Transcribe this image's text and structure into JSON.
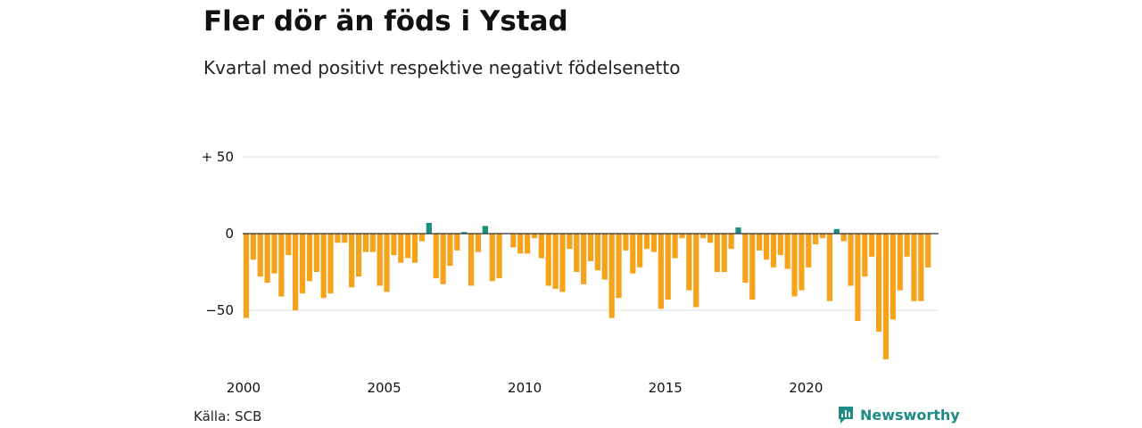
{
  "header": {
    "title": "Fler dör än föds i Ystad",
    "subtitle": "Kvartal med positivt respektive negativt födelsenetto"
  },
  "footer": {
    "source": "Källa: SCB",
    "brand": "Newsworthy",
    "brand_icon": "newsworthy-logo-icon"
  },
  "colors": {
    "positive": "#1a8f80",
    "negative": "#f5a31a",
    "grid": "#dddddd",
    "zero_line": "#333333",
    "text": "#111111",
    "brand": "#1e8c84"
  },
  "chart_data": {
    "type": "bar",
    "x_start": 2000.0,
    "x_step": 0.25,
    "xlim": [
      2000,
      2024.75
    ],
    "x_ticks": [
      2000,
      2005,
      2010,
      2015,
      2020
    ],
    "y_ticks": [
      50,
      0,
      -50
    ],
    "y_tick_labels": [
      "+ 50",
      "0",
      "−50"
    ],
    "ylim": [
      -85,
      50
    ],
    "grid": true,
    "legend": "none",
    "title": "Fler dör än föds i Ystad",
    "subtitle": "Kvartal med positivt respektive negativt födelsenetto",
    "values": [
      -55,
      -17,
      -28,
      -32,
      -26,
      -41,
      -14,
      -50,
      -39,
      -31,
      -25,
      -42,
      -39,
      -6,
      -6,
      -35,
      -28,
      -12,
      -12,
      -34,
      -38,
      -14,
      -19,
      -16,
      -19,
      -5,
      7,
      -29,
      -33,
      -21,
      -11,
      1,
      -34,
      -12,
      5,
      -31,
      -29,
      0,
      -9,
      -13,
      -13,
      -3,
      -16,
      -34,
      -36,
      -38,
      -10,
      -25,
      -33,
      -18,
      -24,
      -30,
      -55,
      -42,
      -11,
      -26,
      -22,
      -10,
      -12,
      -49,
      -43,
      -16,
      -3,
      -37,
      -48,
      -3,
      -6,
      -25,
      -25,
      -10,
      4,
      -32,
      -43,
      -11,
      -17,
      -22,
      -14,
      -23,
      -41,
      -37,
      -22,
      -7,
      -3,
      -44,
      3,
      -5,
      -34,
      -57,
      -28,
      -15,
      -64,
      -82,
      -56,
      -37,
      -15,
      -44,
      -44,
      -22
    ]
  }
}
